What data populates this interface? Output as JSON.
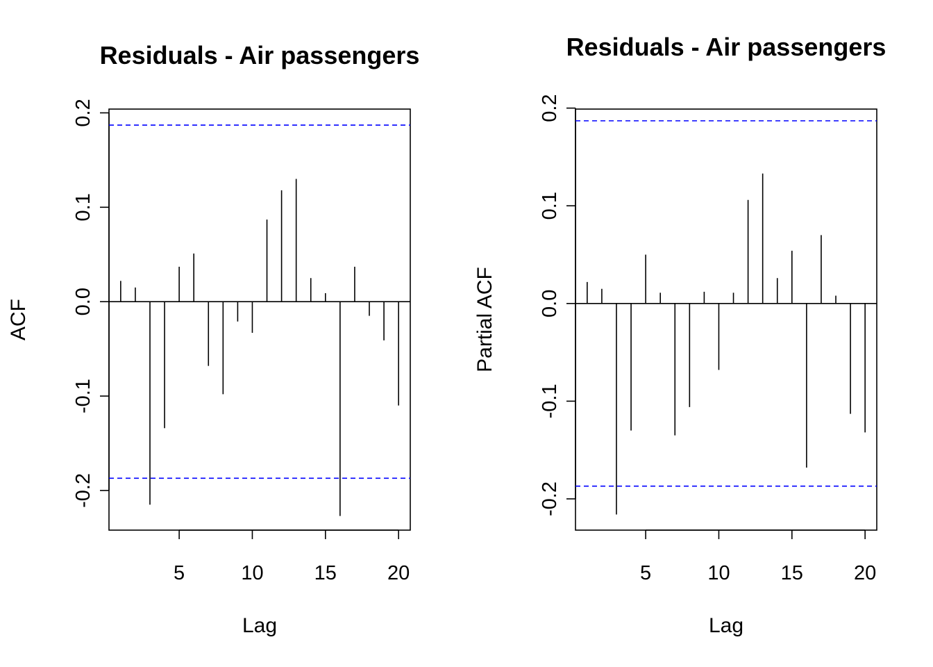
{
  "chart_data": [
    {
      "type": "bar",
      "subtype": "acf-spike",
      "title": "Residuals - Air passengers",
      "xlabel": "Lag",
      "ylabel": "ACF",
      "xlim": [
        0.2,
        20.8
      ],
      "ylim": [
        -0.242,
        0.204
      ],
      "x_ticks": [
        5,
        10,
        15,
        20
      ],
      "y_ticks": [
        -0.2,
        -0.1,
        0.0,
        0.1,
        0.2
      ],
      "y_tick_labels": [
        "-0.2",
        "-0.1",
        "0.0",
        "0.1",
        "0.2"
      ],
      "confidence_bound": 0.187,
      "confidence_color": "#0000ff",
      "grid": false,
      "x": [
        1,
        2,
        3,
        4,
        5,
        6,
        7,
        8,
        9,
        10,
        11,
        12,
        13,
        14,
        15,
        16,
        17,
        18,
        19,
        20
      ],
      "values": [
        0.022,
        0.015,
        -0.215,
        -0.134,
        0.037,
        0.051,
        -0.068,
        -0.098,
        -0.021,
        -0.033,
        0.087,
        0.118,
        0.13,
        0.025,
        0.009,
        -0.227,
        0.037,
        -0.015,
        -0.041,
        -0.11
      ]
    },
    {
      "type": "bar",
      "subtype": "acf-spike",
      "title": "Residuals - Air passengers",
      "xlabel": "Lag",
      "ylabel": "Partial ACF",
      "xlim": [
        0.2,
        20.8
      ],
      "ylim": [
        -0.232,
        0.199
      ],
      "x_ticks": [
        5,
        10,
        15,
        20
      ],
      "y_ticks": [
        -0.2,
        -0.1,
        0.0,
        0.1,
        0.2
      ],
      "y_tick_labels": [
        "-0.2",
        "-0.1",
        "0.0",
        "0.1",
        "0.2"
      ],
      "confidence_bound": 0.187,
      "confidence_color": "#0000ff",
      "grid": false,
      "x": [
        1,
        2,
        3,
        4,
        5,
        6,
        7,
        8,
        9,
        10,
        11,
        12,
        13,
        14,
        15,
        16,
        17,
        18,
        19,
        20
      ],
      "values": [
        0.022,
        0.015,
        -0.216,
        -0.13,
        0.05,
        0.011,
        -0.135,
        -0.106,
        0.012,
        -0.068,
        0.011,
        0.106,
        0.133,
        0.026,
        0.054,
        -0.168,
        0.07,
        0.008,
        -0.113,
        -0.132
      ]
    }
  ]
}
